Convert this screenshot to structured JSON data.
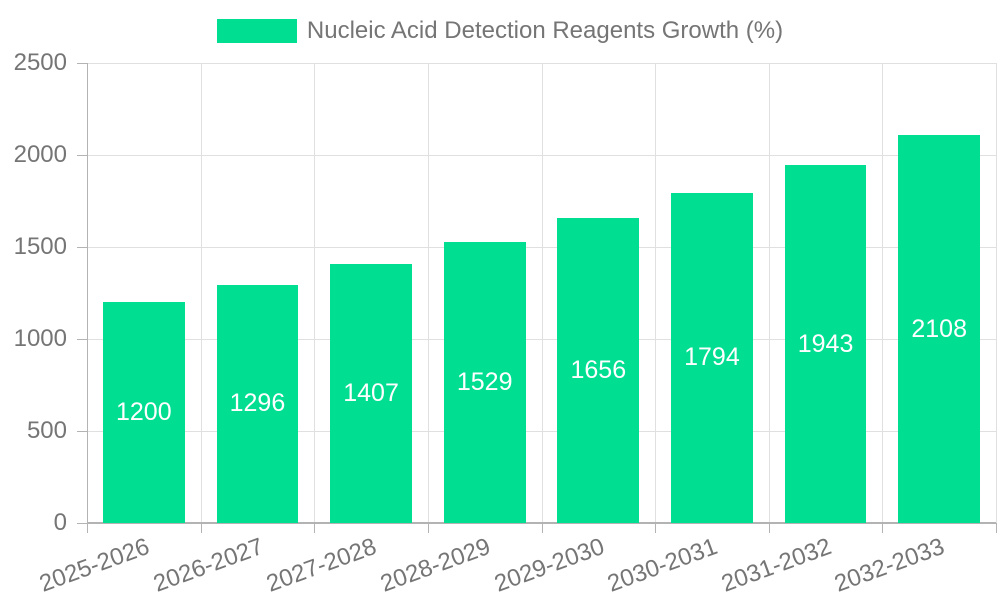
{
  "chart_data": {
    "type": "bar",
    "title": "Nucleic Acid Detection Reagents Growth (%)",
    "categories": [
      "2025-2026",
      "2026-2027",
      "2027-2028",
      "2028-2029",
      "2029-2030",
      "2030-2031",
      "2031-2032",
      "2032-2033"
    ],
    "values": [
      1200,
      1296,
      1407,
      1529,
      1656,
      1794,
      1943,
      2108
    ],
    "xlabel": "",
    "ylabel": "",
    "ylim": [
      0,
      2500
    ],
    "yticks": [
      0,
      500,
      1000,
      1500,
      2000,
      2500
    ],
    "grid": true,
    "legend_position": "top",
    "legend_entries": [
      "Nucleic Acid Detection Reagents Growth (%)"
    ],
    "value_labels_inside_bars": true,
    "colors": {
      "bar": "#00de92",
      "axis_text": "#757575",
      "grid_line": "#e0e0e0",
      "axis_line": "#b3b3b3",
      "value_label": "#ffffff",
      "background": "#ffffff"
    }
  }
}
